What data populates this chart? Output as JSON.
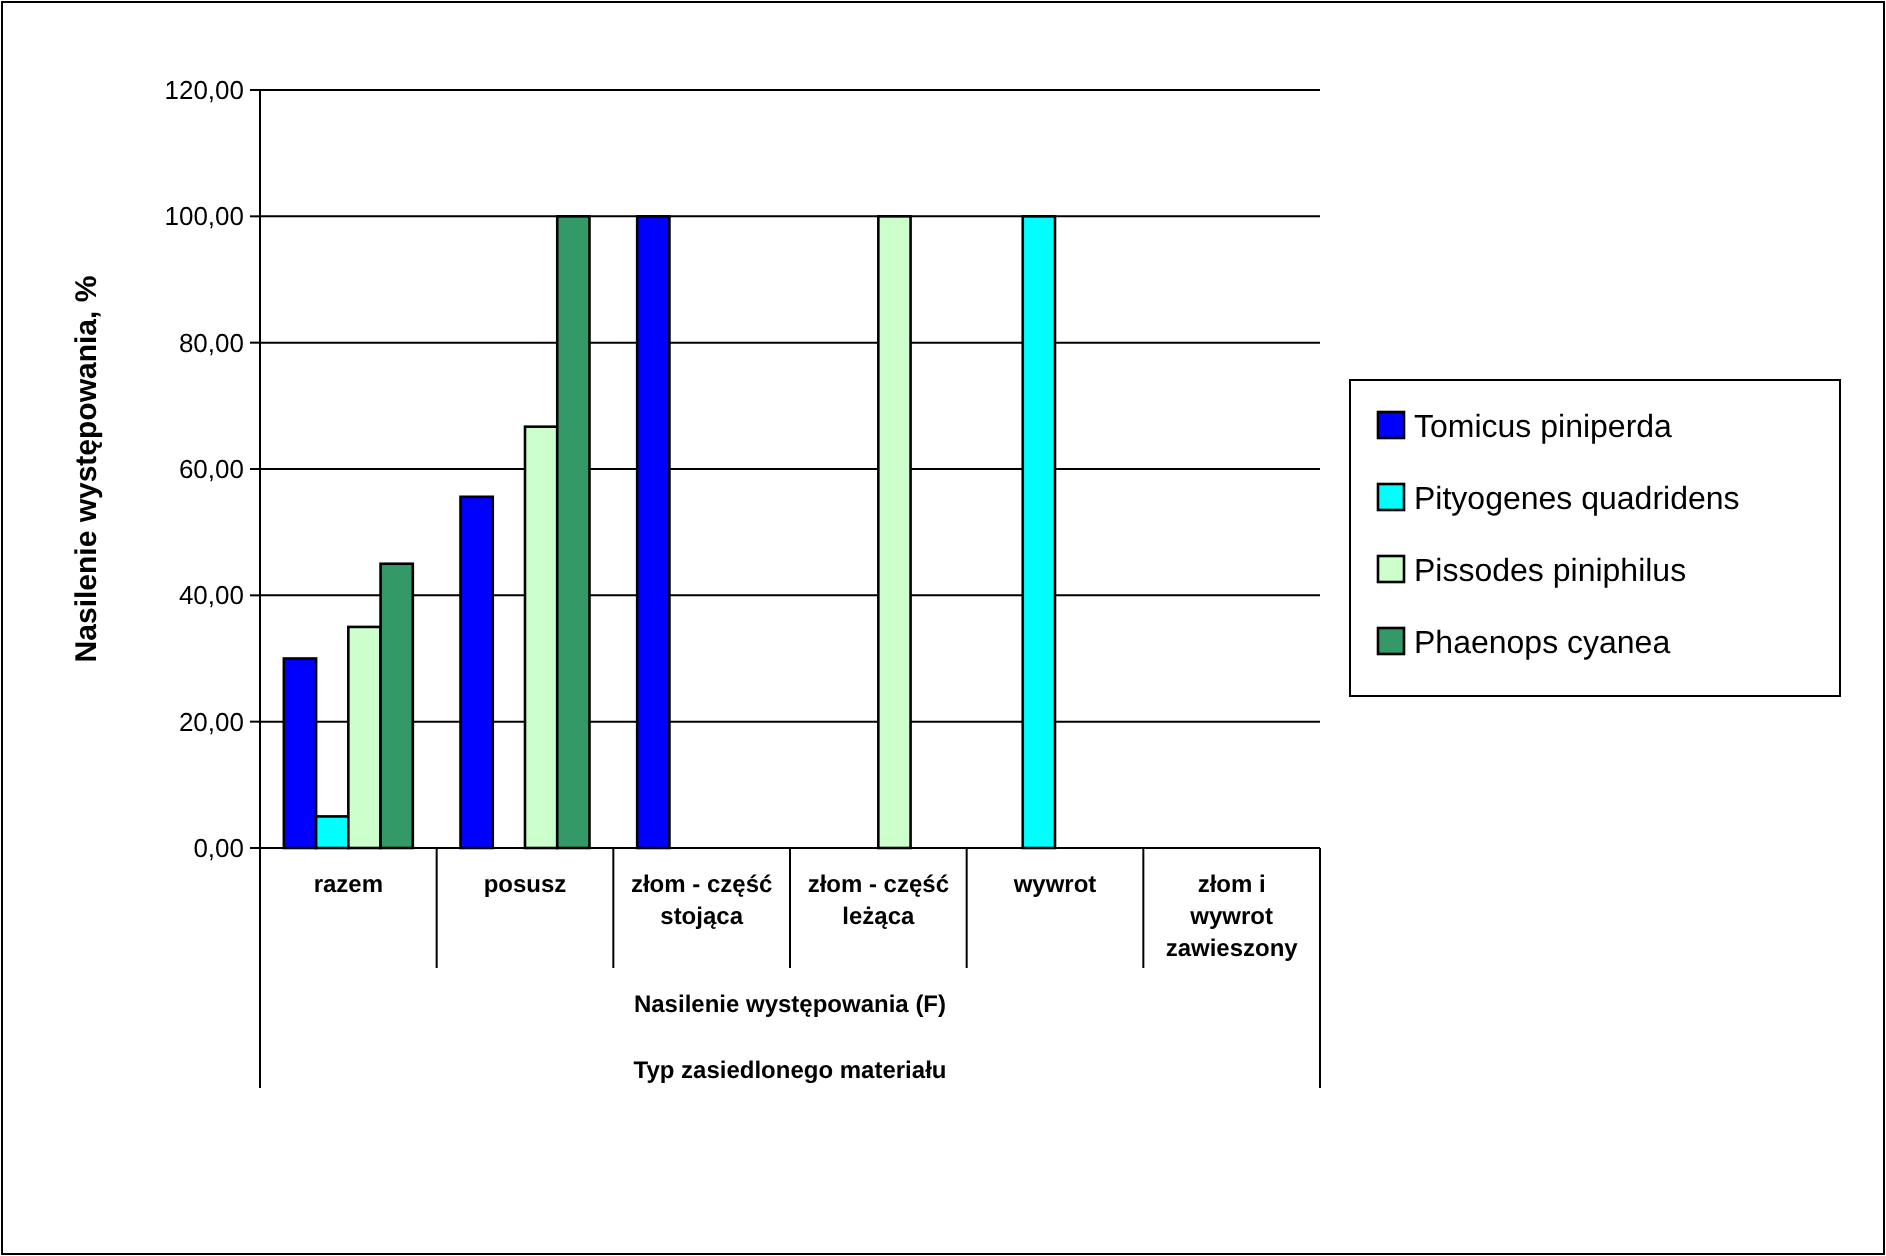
{
  "chart_data": {
    "type": "bar",
    "ylabel": "Nasilenie występowania, %",
    "xlabel": "Typ zasiedlonego materiału",
    "annotations": [
      "Nasilenie występowania (F)"
    ],
    "categories": [
      "razem",
      "posusz",
      "złom - część stojąca",
      "złom - część leżąca",
      "wywrot",
      "złom i wywrot zawieszony"
    ],
    "series": [
      {
        "name": "Tomicus piniperda",
        "color": "#0000ff",
        "values": [
          30,
          55.6,
          100,
          null,
          null,
          null
        ]
      },
      {
        "name": "Pityogenes quadridens",
        "color": "#00ffff",
        "values": [
          5,
          null,
          null,
          null,
          100,
          null
        ]
      },
      {
        "name": "Pissodes piniphilus",
        "color": "#ccffcc",
        "values": [
          35,
          66.7,
          null,
          100,
          null,
          null
        ]
      },
      {
        "name": "Phaenops cyanea",
        "color": "#339966",
        "values": [
          45,
          100,
          null,
          null,
          null,
          null
        ]
      }
    ],
    "ylim": [
      0,
      120
    ],
    "yticks": [
      {
        "value": 0,
        "label": "0,00"
      },
      {
        "value": 20,
        "label": "20,00"
      },
      {
        "value": 40,
        "label": "40,00"
      },
      {
        "value": 60,
        "label": "60,00"
      },
      {
        "value": 80,
        "label": "80,00"
      },
      {
        "value": 100,
        "label": "100,00"
      },
      {
        "value": 120,
        "label": "120,00"
      }
    ],
    "grid": "y",
    "legend": "right"
  }
}
